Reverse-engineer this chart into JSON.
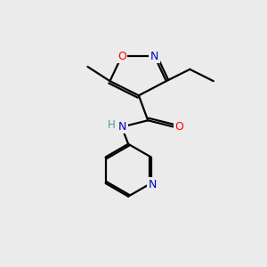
{
  "bg_color": "#ebebeb",
  "bond_color": "#000000",
  "atom_colors": {
    "O": "#ff0000",
    "N": "#0000cc",
    "H": "#4a9a9a",
    "C": "#000000"
  },
  "lw": 1.6
}
